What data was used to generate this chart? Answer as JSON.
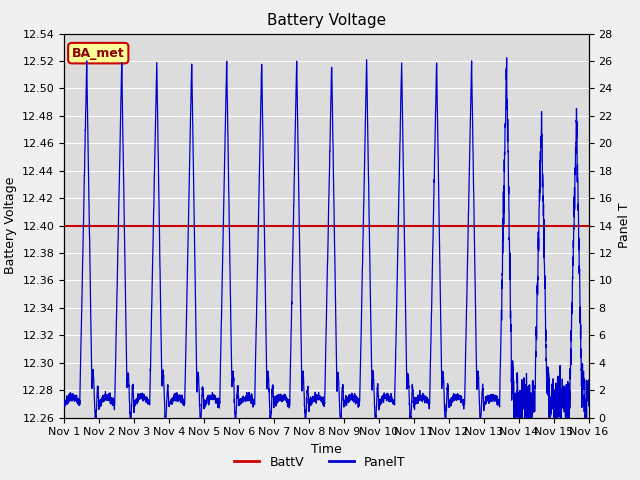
{
  "title": "Battery Voltage",
  "xlabel": "Time",
  "ylabel_left": "Battery Voltage",
  "ylabel_right": "Panel T",
  "x_start": 0,
  "x_end": 15,
  "x_ticks": [
    0,
    1,
    2,
    3,
    4,
    5,
    6,
    7,
    8,
    9,
    10,
    11,
    12,
    13,
    14,
    15
  ],
  "x_tick_labels": [
    "Nov 1",
    "Nov 2",
    "Nov 3",
    "Nov 4",
    "Nov 5",
    "Nov 6",
    "Nov 7",
    "Nov 8",
    "Nov 9",
    "Nov 10",
    "Nov 11",
    "Nov 12",
    "Nov 13",
    "Nov 14",
    "Nov 15",
    "Nov 16"
  ],
  "ylim_left": [
    12.26,
    12.54
  ],
  "ylim_right": [
    0,
    28
  ],
  "battv_value": 12.4,
  "battv_color": "#cc0000",
  "panelt_color": "#0000cc",
  "background_color": "#dcdcdc",
  "grid_color": "#c8c8c8",
  "fig_bg": "#f0f0f0",
  "annotation_text": "BA_met",
  "annotation_bg": "#ffff99",
  "annotation_border": "#cc0000",
  "legend_battv": "BattV",
  "legend_panelt": "PanelT",
  "title_fontsize": 11,
  "axis_fontsize": 9,
  "tick_fontsize": 8,
  "left_yticks": [
    12.26,
    12.28,
    12.3,
    12.32,
    12.34,
    12.36,
    12.38,
    12.4,
    12.42,
    12.44,
    12.46,
    12.48,
    12.5,
    12.52,
    12.54
  ],
  "right_yticks": [
    0,
    2,
    4,
    6,
    8,
    10,
    12,
    14,
    16,
    18,
    20,
    22,
    24,
    26,
    28
  ]
}
